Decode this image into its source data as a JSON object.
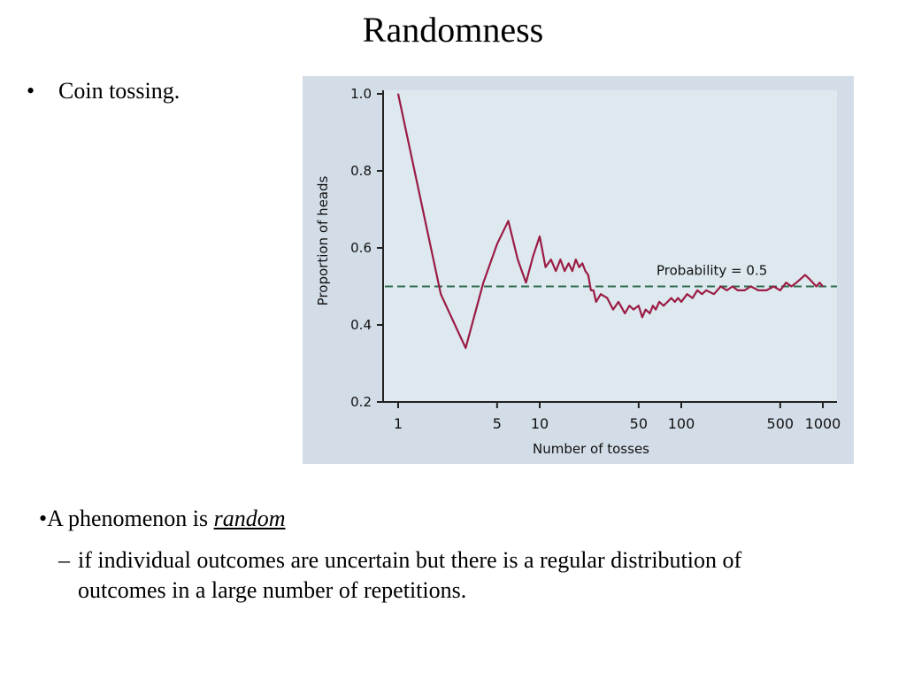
{
  "slide": {
    "title": "Randomness",
    "bullet_marker": "•",
    "bullet_1": "Coin tossing.",
    "bullet_2_prefix": "•A phenomenon is ",
    "bullet_2_term": "random",
    "sub_marker": "–",
    "sub_bullet": "if individual outcomes are uncertain but there is a regular distribution of outcomes in a large number of repetitions."
  },
  "colors": {
    "panel_bg": "#d3dde7",
    "plot_bg": "#dde9ef",
    "line": "#9b1b44",
    "reference_line": "#2e6b4f",
    "axis": "#222222"
  },
  "chart_data": {
    "type": "line",
    "xscale": "log",
    "xlabel": "Number of tosses",
    "ylabel": "Proportion of heads",
    "xlim": [
      1,
      1000
    ],
    "ylim": [
      0.2,
      1.0
    ],
    "xticks": [
      1,
      5,
      10,
      50,
      100,
      500,
      1000
    ],
    "xtick_labels": [
      "1",
      "5",
      "10",
      "50",
      "100",
      "500",
      "1000"
    ],
    "yticks": [
      0.2,
      0.4,
      0.6,
      0.8,
      1.0
    ],
    "ytick_labels": [
      "0.2",
      "0.4",
      "0.6",
      "0.8",
      "1.0"
    ],
    "reference_line": {
      "y": 0.5,
      "label": "Probability = 0.5",
      "style": "dashed"
    },
    "grid": false,
    "series": [
      {
        "x": [
          1,
          2,
          3,
          4,
          5,
          6,
          7,
          8,
          9,
          10,
          11,
          12,
          13,
          14,
          15,
          16,
          17,
          18,
          19,
          20,
          21,
          22,
          23,
          24,
          25,
          27,
          30,
          33,
          36,
          40,
          43,
          46,
          50,
          53,
          56,
          60,
          63,
          66,
          70,
          75,
          80,
          85,
          90,
          95,
          100,
          110,
          120,
          130,
          140,
          150,
          170,
          190,
          210,
          230,
          250,
          280,
          310,
          350,
          400,
          450,
          500,
          550,
          600,
          650,
          700,
          750,
          800,
          850,
          900,
          950,
          1000
        ],
        "y": [
          1.0,
          0.48,
          0.34,
          0.51,
          0.61,
          0.67,
          0.57,
          0.51,
          0.58,
          0.63,
          0.55,
          0.57,
          0.54,
          0.57,
          0.54,
          0.56,
          0.54,
          0.57,
          0.55,
          0.56,
          0.54,
          0.53,
          0.49,
          0.49,
          0.46,
          0.48,
          0.47,
          0.44,
          0.46,
          0.43,
          0.45,
          0.44,
          0.45,
          0.42,
          0.44,
          0.43,
          0.45,
          0.44,
          0.46,
          0.45,
          0.46,
          0.47,
          0.46,
          0.47,
          0.46,
          0.48,
          0.47,
          0.49,
          0.48,
          0.49,
          0.48,
          0.5,
          0.49,
          0.5,
          0.49,
          0.49,
          0.5,
          0.49,
          0.49,
          0.5,
          0.49,
          0.51,
          0.5,
          0.51,
          0.52,
          0.53,
          0.52,
          0.51,
          0.5,
          0.51,
          0.5
        ]
      }
    ]
  }
}
